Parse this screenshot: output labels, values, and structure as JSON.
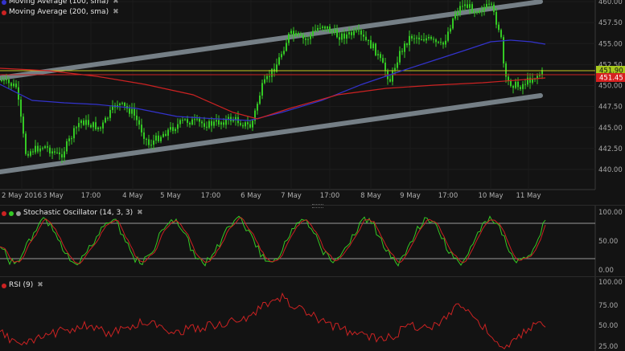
{
  "main": {
    "legend": [
      {
        "label": "Moving Average (100, sma)",
        "color": "#3333cc",
        "close_glyph": "✖"
      },
      {
        "label": "Moving Average (200, sma)",
        "color": "#cc2222",
        "close_glyph": "✖"
      }
    ],
    "y_ticks": [
      "460.00",
      "457.50",
      "455.00",
      "452.50",
      "450.00",
      "447.50",
      "445.00",
      "442.50",
      "440.00"
    ],
    "x_ticks": [
      "2 May 2016",
      "3 May",
      "17:00",
      "4 May",
      "5 May",
      "17:00",
      "6 May",
      "7 May",
      "17:00",
      "8 May",
      "9 May",
      "17:00",
      "10 May",
      "11 May"
    ],
    "price_tags": [
      {
        "value": "451.90",
        "bg": "#a8c81e",
        "fg": "#111111"
      },
      {
        "value": "451.45",
        "bg": "#d62020",
        "fg": "#ffffff"
      }
    ],
    "colors": {
      "candle": "#34c924",
      "channel": "#8e9aa3",
      "ma100": "#3333cc",
      "ma200": "#cc2222",
      "hline_yellow": "#c8c820",
      "hline_red": "#cc2222"
    }
  },
  "stochastic": {
    "title": "Stochastic Oscillator (14, 3, 3)",
    "dot_colors": [
      "#cc2222",
      "#34c924",
      "#999999"
    ],
    "close_glyph": "✖",
    "y_ticks": [
      "100.00",
      "50.00",
      "0.00"
    ]
  },
  "rsi": {
    "title": "RSI (9)",
    "dot_color": "#cc2222",
    "close_glyph": "✖",
    "y_ticks": [
      "100.00",
      "75.00",
      "50.00",
      "25.00"
    ]
  }
}
